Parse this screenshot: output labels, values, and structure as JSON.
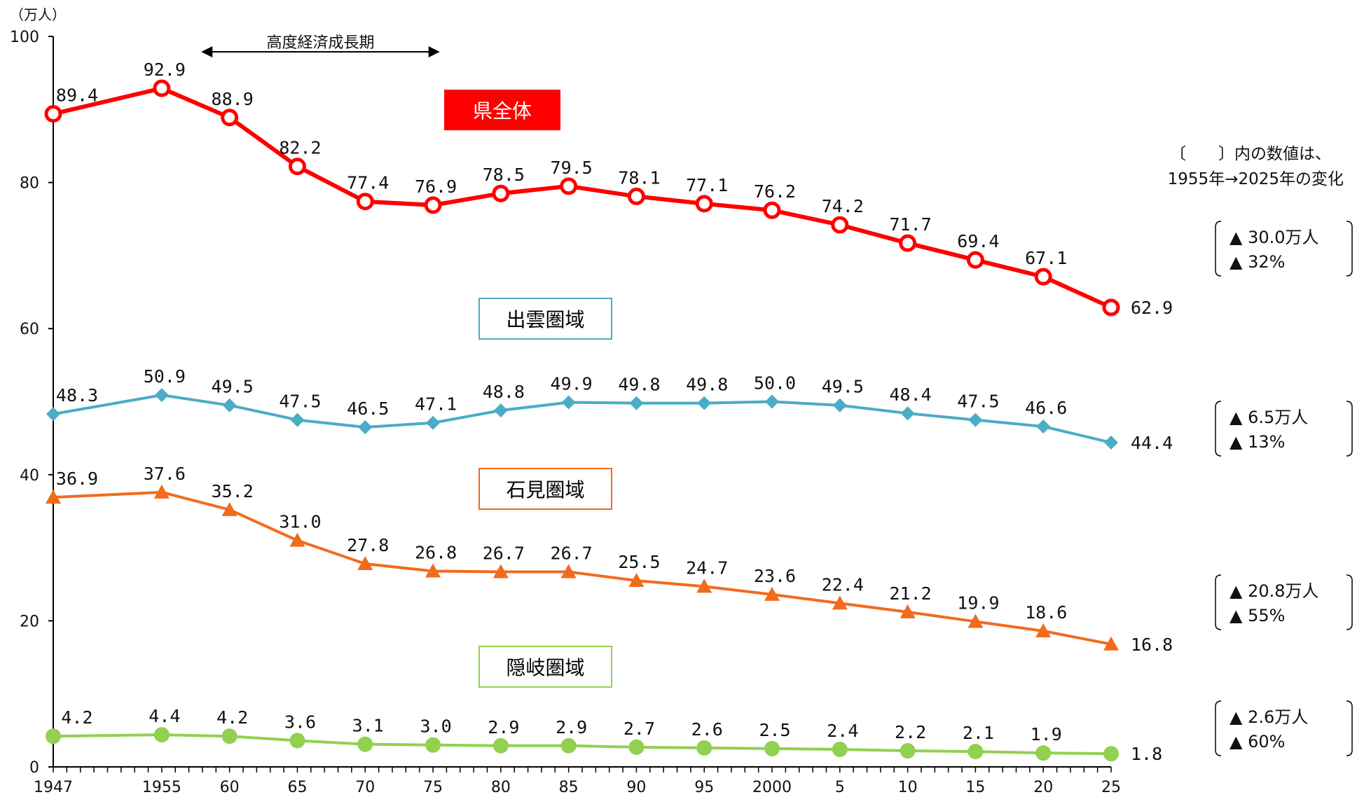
{
  "chart_data": {
    "type": "line",
    "y_unit": "（万人）",
    "ylim": [
      0,
      100
    ],
    "y_ticks": [
      0,
      20,
      40,
      60,
      80,
      100
    ],
    "x": [
      1947,
      1955,
      1960,
      1965,
      1970,
      1975,
      1980,
      1985,
      1990,
      1995,
      2000,
      2005,
      2010,
      2015,
      2020,
      2025
    ],
    "x_tick_labels": [
      "1947",
      "1955",
      "60",
      "65",
      "70",
      "75",
      "80",
      "85",
      "90",
      "95",
      "2000",
      "5",
      "10",
      "15",
      "20",
      "25"
    ],
    "series": [
      {
        "name": "県全体",
        "color": "#ff0000",
        "marker": "circle-open",
        "values": [
          89.4,
          92.9,
          88.9,
          82.2,
          77.4,
          76.9,
          78.5,
          79.5,
          78.1,
          77.1,
          76.2,
          74.2,
          71.7,
          69.4,
          67.1,
          62.9
        ],
        "labels": [
          "89.4",
          "92.9",
          "88.9",
          "82.2",
          "77.4",
          "76.9",
          "78.5",
          "79.5",
          "78.1",
          "77.1",
          "76.2",
          "74.2",
          "71.7",
          "69.4",
          "67.1",
          "62.9"
        ],
        "change": [
          "▲ 30.0万人",
          "▲ 32%"
        ]
      },
      {
        "name": "出雲圏域",
        "color": "#4bacc6",
        "marker": "diamond",
        "values": [
          48.3,
          50.9,
          49.5,
          47.5,
          46.5,
          47.1,
          48.8,
          49.9,
          49.8,
          49.8,
          50.0,
          49.5,
          48.4,
          47.5,
          46.6,
          44.4
        ],
        "labels": [
          "48.3",
          "50.9",
          "49.5",
          "47.5",
          "46.5",
          "47.1",
          "48.8",
          "49.9",
          "49.8",
          "49.8",
          "50.0",
          "49.5",
          "48.4",
          "47.5",
          "46.6",
          "44.4"
        ],
        "change": [
          "▲ 6.5万人",
          "▲ 13%"
        ]
      },
      {
        "name": "石見圏域",
        "color": "#f26b1d",
        "marker": "triangle",
        "values": [
          36.9,
          37.6,
          35.2,
          31.0,
          27.8,
          26.8,
          26.7,
          26.7,
          25.5,
          24.7,
          23.6,
          22.4,
          21.2,
          19.9,
          18.6,
          16.8
        ],
        "labels": [
          "36.9",
          "37.6",
          "35.2",
          "31.0",
          "27.8",
          "26.8",
          "26.7",
          "26.7",
          "25.5",
          "24.7",
          "23.6",
          "22.4",
          "21.2",
          "19.9",
          "18.6",
          "16.8"
        ],
        "change": [
          "▲ 20.8万人",
          "▲ 55%"
        ]
      },
      {
        "name": "隠岐圏域",
        "color": "#92d050",
        "marker": "circle",
        "values": [
          4.2,
          4.4,
          4.2,
          3.6,
          3.1,
          3.0,
          2.9,
          2.9,
          2.7,
          2.6,
          2.5,
          2.4,
          2.2,
          2.1,
          1.9,
          1.8
        ],
        "labels": [
          "4.2",
          "4.4",
          "4.2",
          "3.6",
          "3.1",
          "3.0",
          "2.9",
          "2.9",
          "2.7",
          "2.6",
          "2.5",
          "2.4",
          "2.2",
          "2.1",
          "1.9",
          "1.8"
        ],
        "change": [
          "▲ 2.6万人",
          "▲ 60%"
        ]
      }
    ],
    "annotations": {
      "period_label": "高度経済成長期",
      "period_range": [
        1955,
        1975
      ],
      "note_line1": "〔　　〕内の数値は、",
      "note_line2": "1955年→2025年の変化"
    },
    "legend": "inline-labels"
  }
}
